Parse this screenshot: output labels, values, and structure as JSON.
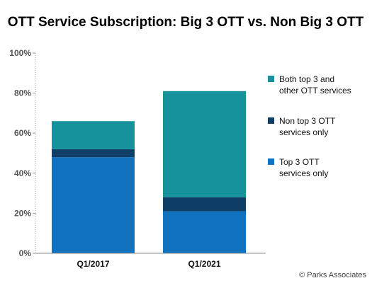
{
  "chart_data": {
    "type": "bar",
    "stacked": true,
    "title": "OTT Service Subscription: Big 3 OTT vs. Non Big 3 OTT",
    "categories": [
      "Q1/2017",
      "Q1/2021"
    ],
    "ylim": [
      0,
      100
    ],
    "yticks": [
      "0%",
      "20%",
      "40%",
      "60%",
      "80%",
      "100%"
    ],
    "grid": false,
    "legend_position": "right",
    "series": [
      {
        "name": "Top 3 OTT services only",
        "values": [
          48,
          21
        ],
        "color": "#1172bf"
      },
      {
        "name": "Non top 3 OTT services only",
        "values": [
          4,
          7
        ],
        "color": "#0f3e66"
      },
      {
        "name": "Both top 3 and other OTT services",
        "values": [
          14,
          53
        ],
        "color": "#16929d"
      }
    ],
    "legend": [
      {
        "lines": [
          "Both top 3 and",
          "other OTT services"
        ],
        "color": "#16929d"
      },
      {
        "lines": [
          "Non top 3 OTT",
          "services only"
        ],
        "color": "#0f3e66"
      },
      {
        "lines": [
          "Top 3 OTT",
          "services only"
        ],
        "color": "#1172bf"
      }
    ]
  },
  "credit": "© Parks Associates"
}
